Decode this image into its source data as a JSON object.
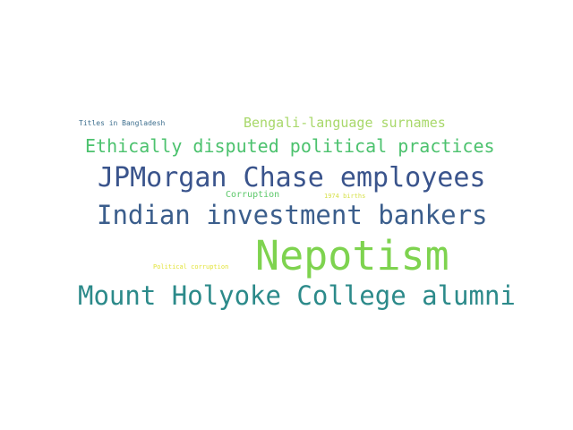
{
  "words": [
    {
      "text": "Titles in Bangladesh",
      "color": "#3e6f8e"
    },
    {
      "text": "Bengali-language surnames",
      "color": "#a8d86a"
    },
    {
      "text": "Ethically disputed political practices",
      "color": "#4cc26e"
    },
    {
      "text": "JPMorgan Chase employees",
      "color": "#3a548c"
    },
    {
      "text": "Corruption",
      "color": "#5cc86a"
    },
    {
      "text": "1974 births",
      "color": "#d6e04a"
    },
    {
      "text": "Indian investment bankers",
      "color": "#3b5e8c"
    },
    {
      "text": "Nepotism",
      "color": "#7ed34f"
    },
    {
      "text": "Political corruption",
      "color": "#e2e338"
    },
    {
      "text": "Mount Holyoke College alumni",
      "color": "#2c8a8a"
    }
  ]
}
